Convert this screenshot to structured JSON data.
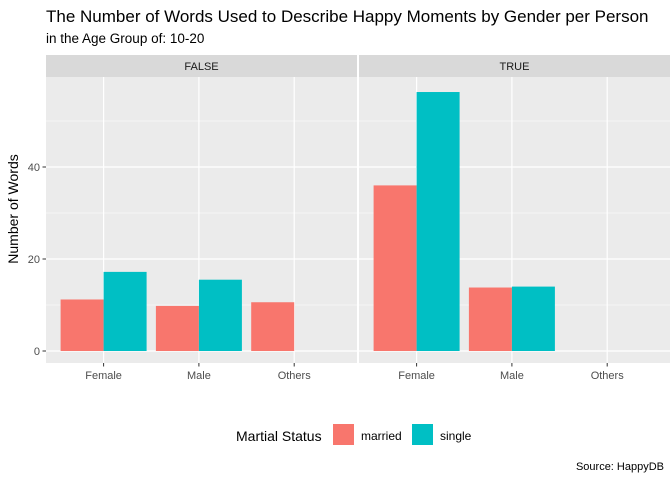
{
  "chart_data": {
    "type": "bar",
    "title": "The Number of Words Used to Describe Happy Moments by Gender per Person",
    "subtitle": "in the Age Group of: 10-20",
    "caption": "Source: HappyDB",
    "ylabel": "Number of Words",
    "xlabel": "",
    "ylim": [
      0,
      56
    ],
    "yticks": [
      0,
      20,
      40
    ],
    "grid": true,
    "categories": [
      "Female",
      "Male",
      "Others"
    ],
    "legend": {
      "title": "Martial Status",
      "position": "bottom",
      "entries": [
        "married",
        "single"
      ]
    },
    "series_colors": {
      "married": "#F8766D",
      "single": "#00BFC4"
    },
    "panels": [
      {
        "label": "FALSE",
        "series": [
          {
            "name": "married",
            "values": [
              11.2,
              9.8,
              10.6
            ]
          },
          {
            "name": "single",
            "values": [
              17.2,
              15.5,
              null
            ]
          }
        ]
      },
      {
        "label": "TRUE",
        "series": [
          {
            "name": "married",
            "values": [
              36.0,
              13.8,
              null
            ]
          },
          {
            "name": "single",
            "values": [
              56.3,
              14.0,
              null
            ]
          }
        ]
      }
    ]
  }
}
